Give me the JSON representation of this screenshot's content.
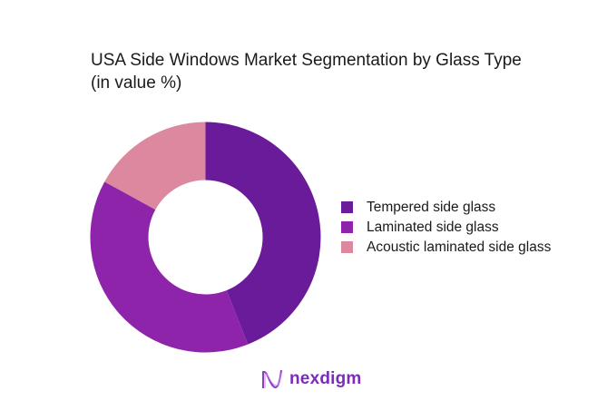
{
  "chart_data": {
    "type": "pie",
    "donut": true,
    "title": "USA Side Windows Market Segmentation by Glass Type",
    "subtitle": "(in value %)",
    "categories": [
      "Tempered side glass",
      "Laminated side glass",
      "Acoustic laminated side glass"
    ],
    "values": [
      44,
      39,
      17
    ],
    "colors": [
      "#6A1B9A",
      "#8E24AA",
      "#DC889E"
    ],
    "legend_position": "right"
  },
  "branding": {
    "logo_text": "nexdigm"
  }
}
